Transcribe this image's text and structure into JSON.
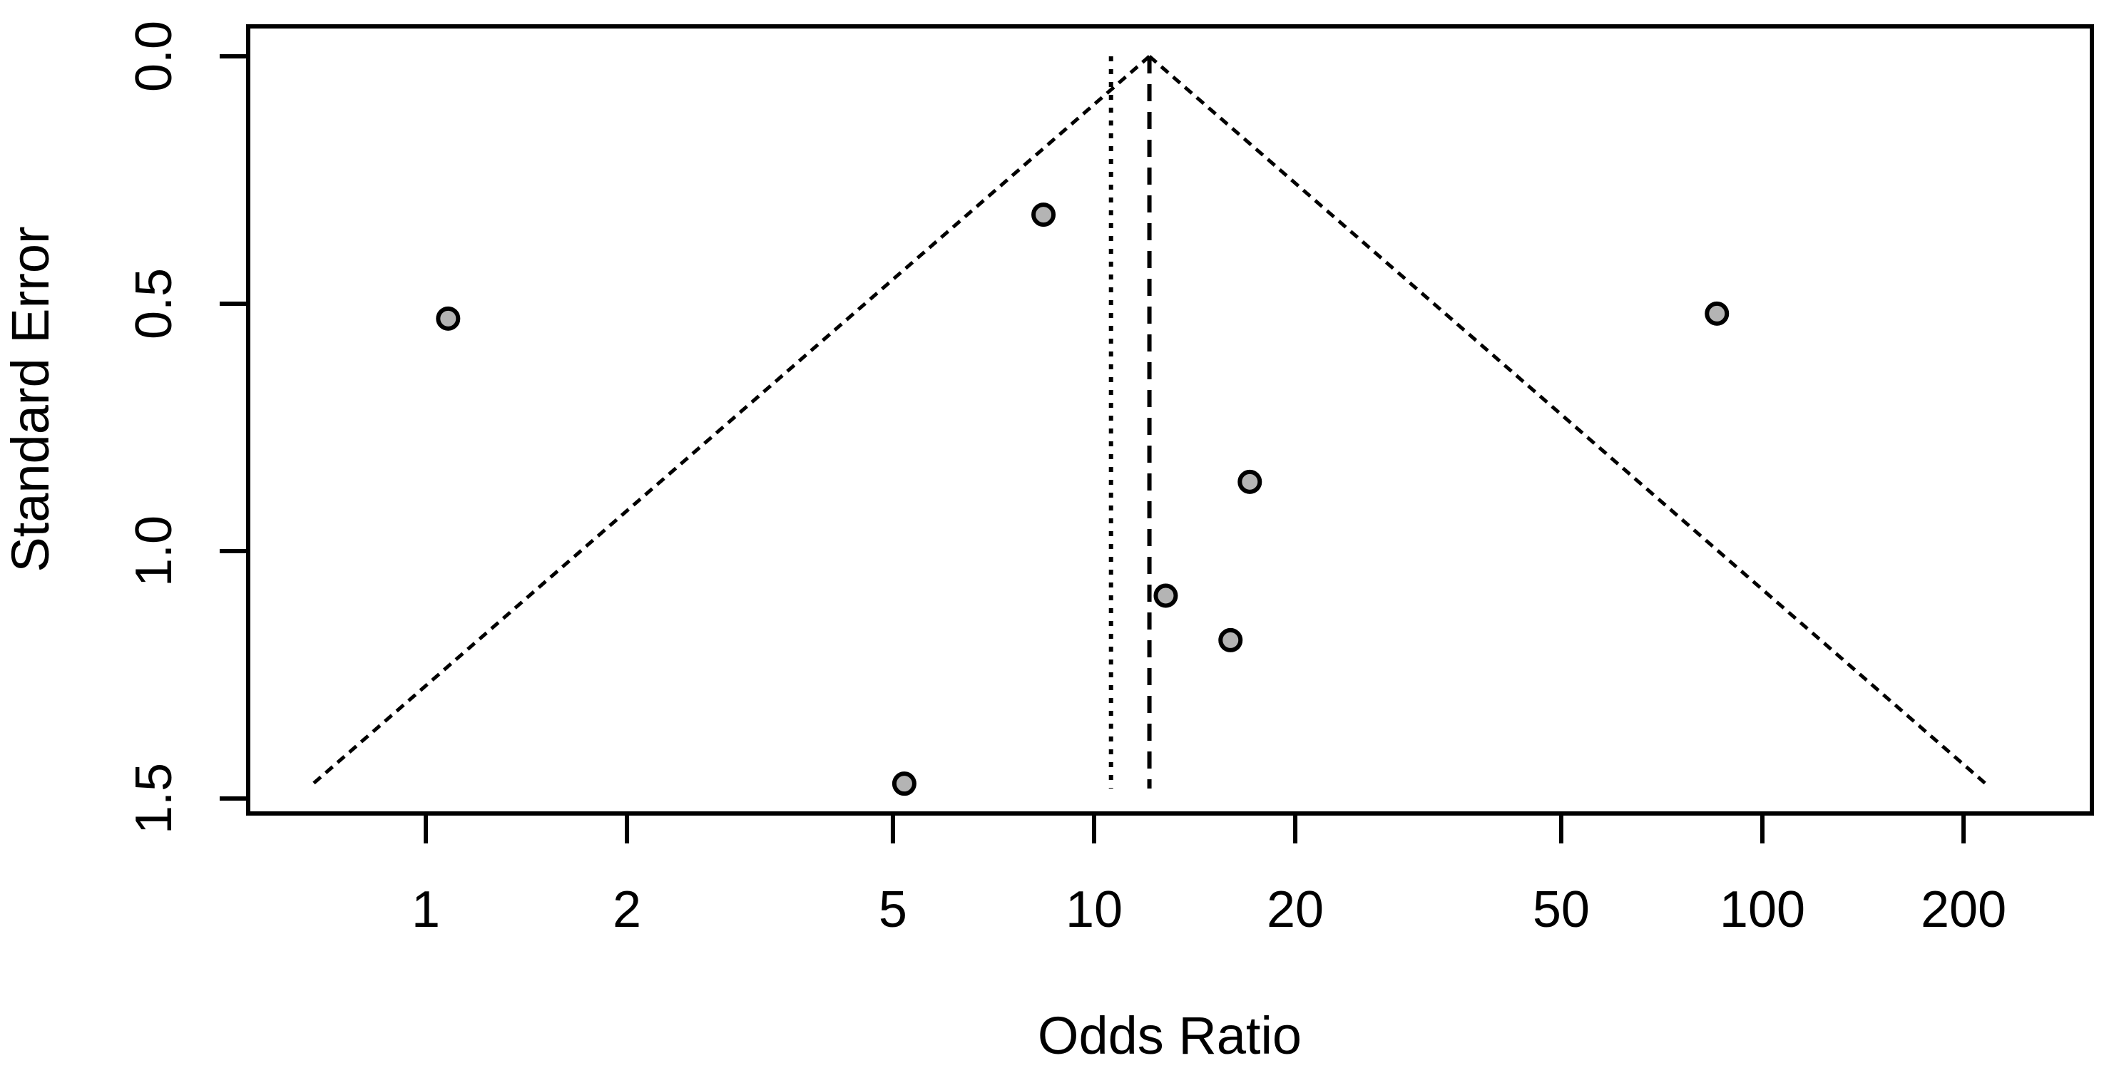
{
  "chart_data": {
    "type": "scatter",
    "subtype": "funnel-plot",
    "title": "",
    "xlabel": "Odds Ratio",
    "ylabel": "Standard Error",
    "x_scale": "log10",
    "x_ticks": [
      1,
      2,
      5,
      10,
      20,
      50,
      100,
      200
    ],
    "y_ticks": [
      "0.0",
      "0.5",
      "1.0",
      "1.5"
    ],
    "x_axis_range_or": [
      0.54,
      310
    ],
    "y_axis_range_se": [
      -0.06,
      1.54
    ],
    "grid": false,
    "legend": false,
    "points": [
      {
        "or": 1.08,
        "se": 0.53
      },
      {
        "or": 8.4,
        "se": 0.32
      },
      {
        "or": 5.2,
        "se": 1.47
      },
      {
        "or": 12.8,
        "se": 1.09
      },
      {
        "or": 16.0,
        "se": 1.18
      },
      {
        "or": 17.1,
        "se": 0.86
      },
      {
        "or": 85.5,
        "se": 0.52
      }
    ],
    "funnel": {
      "apex_or": 12.1,
      "apex_se": 0.0,
      "bottom_se": 1.474,
      "half_width_z": 1.96
    },
    "reference_lines": [
      {
        "or": 10.6,
        "style": "dotted"
      },
      {
        "or": 12.1,
        "style": "dashed"
      }
    ],
    "point_fill": "#b4b4b4",
    "point_stroke": "#000000",
    "line_color": "#000000"
  }
}
